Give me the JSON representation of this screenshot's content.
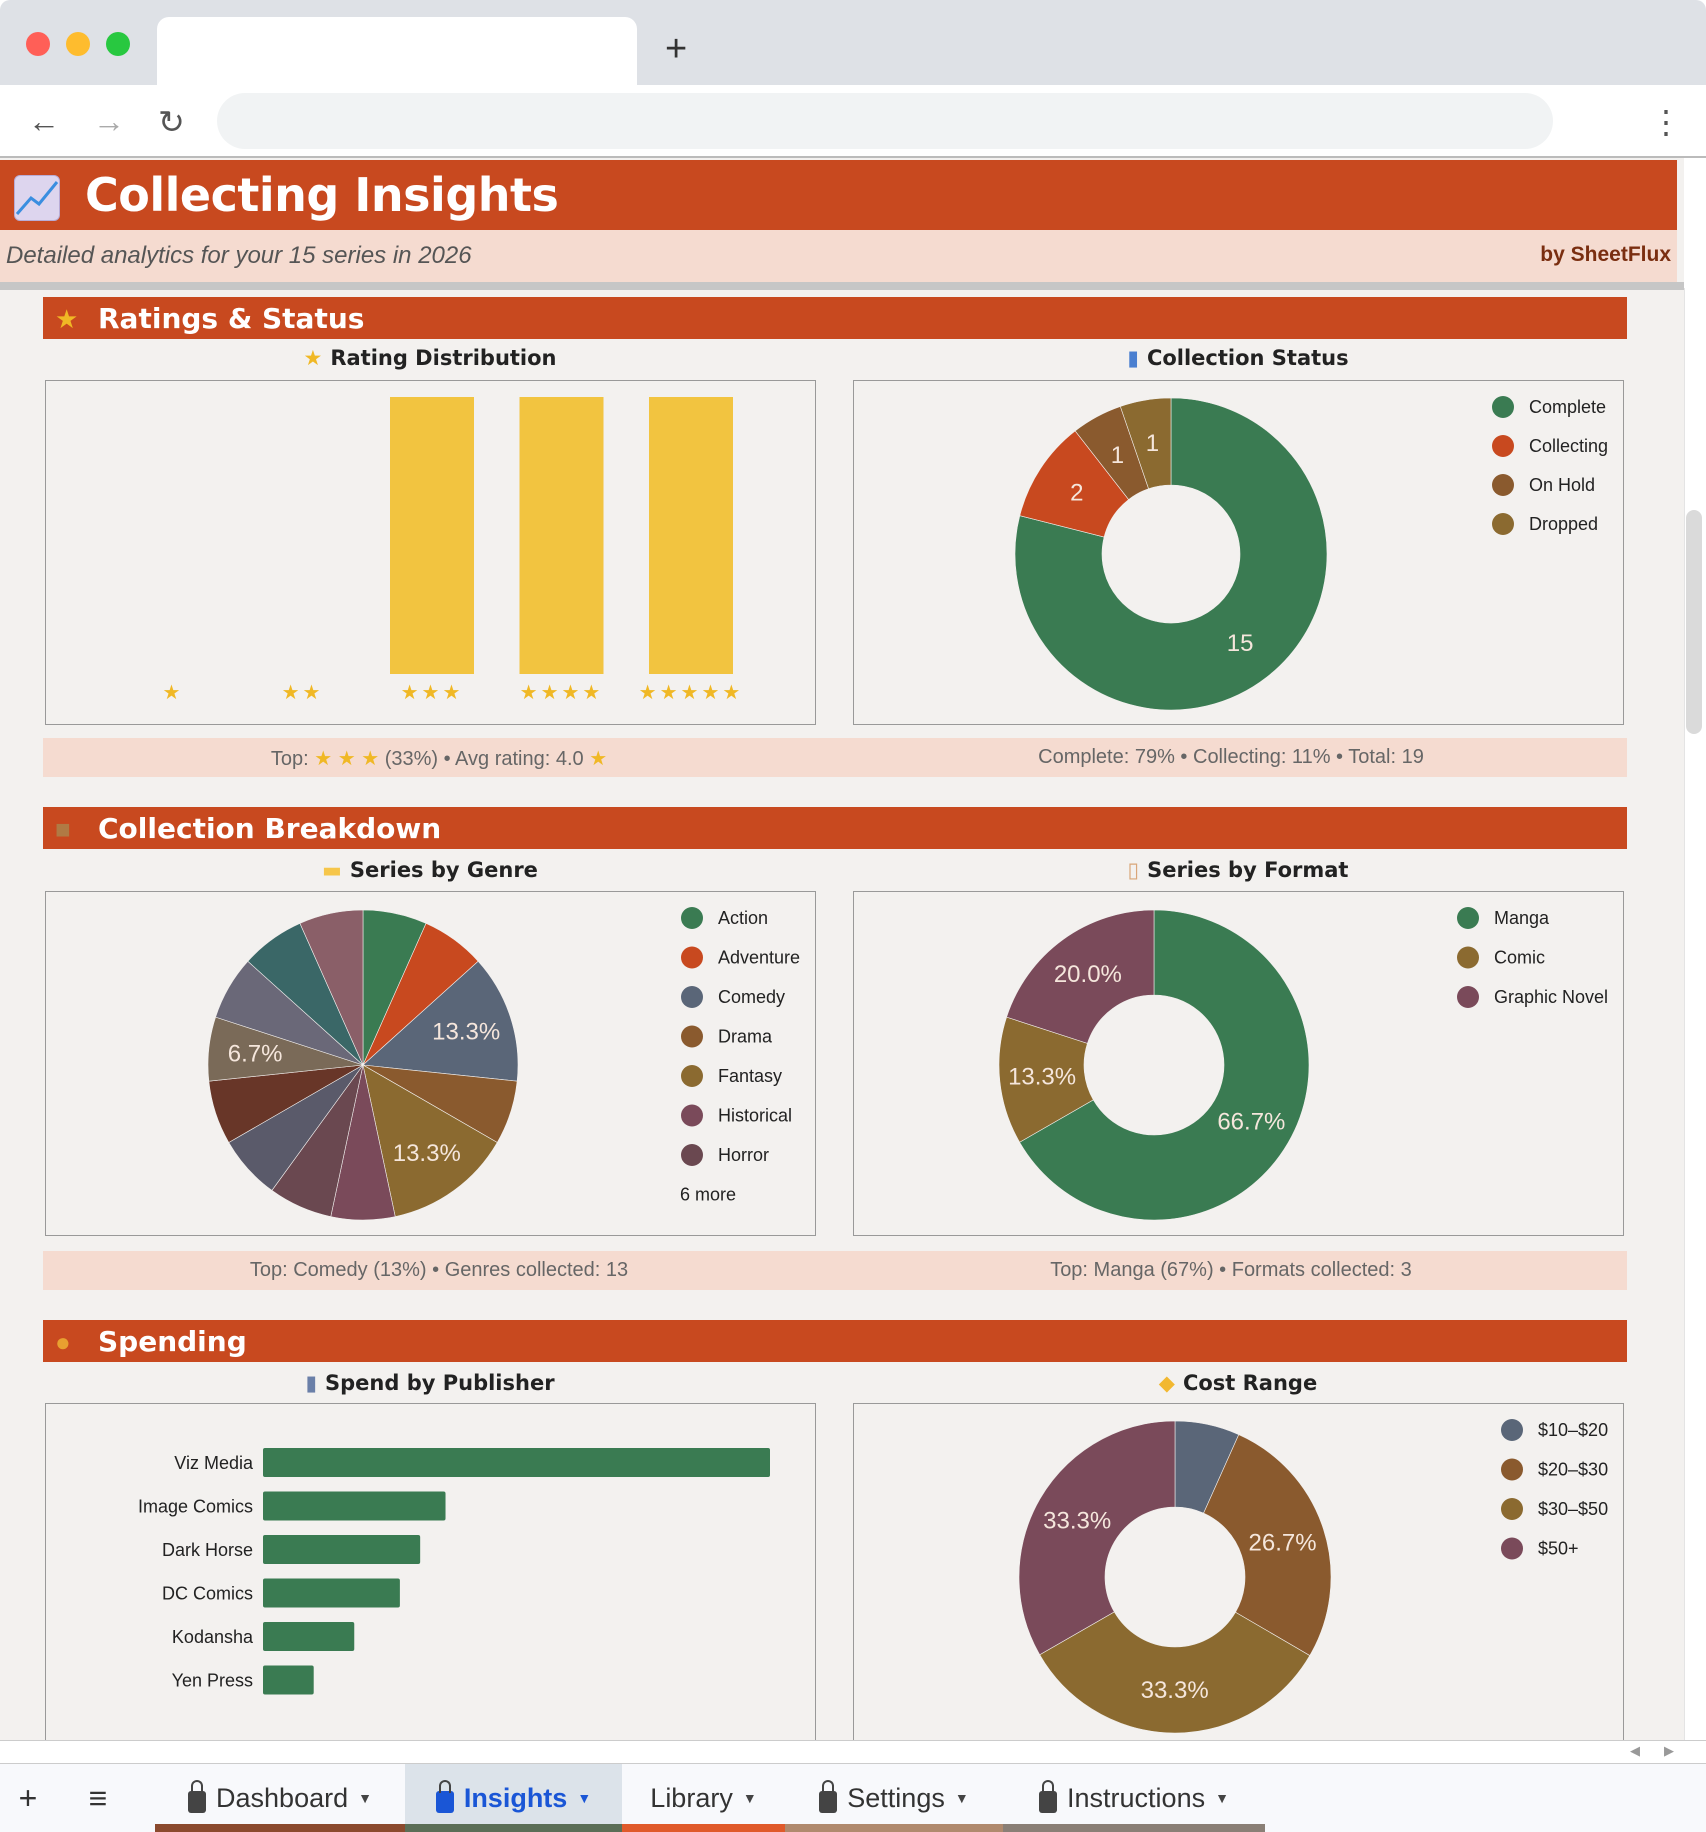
{
  "header": {
    "title": "Collecting Insights",
    "subtitle": "Detailed analytics for your 15 series in 2026",
    "brand": "by SheetFlux"
  },
  "sections": [
    {
      "title": "Ratings & Status",
      "icon": "star-icon"
    },
    {
      "title": "Collection Breakdown",
      "icon": "package-icon"
    },
    {
      "title": "Spending",
      "icon": "money-bag-icon"
    }
  ],
  "charts": {
    "rating": {
      "title": "Rating Distribution",
      "icon": "star-icon",
      "footer_prefix": "Top:",
      "footer_stars": "★ ★ ★",
      "footer_mid": "(33%) • Avg rating: 4.0",
      "footer_star": "★"
    },
    "status": {
      "title": "Collection Status",
      "icon": "bar-chart-icon",
      "footer": "Complete: 79% • Collecting: 11% • Total: 19"
    },
    "genre": {
      "title": "Series by Genre",
      "icon": "folder-icon",
      "more": "6 more",
      "footer": "Top: Comedy (13%) • Genres collected: 13"
    },
    "format": {
      "title": "Series by Format",
      "icon": "clipboard-icon",
      "footer": "Top: Manga (67%) • Formats collected: 3"
    },
    "publisher": {
      "title": "Spend by Publisher",
      "icon": "office-building-icon"
    },
    "cost": {
      "title": "Cost Range",
      "icon": "price-tag-icon"
    }
  },
  "chart_data": [
    {
      "type": "bar",
      "id": "rating",
      "categories": [
        "★",
        "★★",
        "★★★",
        "★★★★",
        "★★★★★"
      ],
      "values": [
        0,
        0,
        5,
        5,
        5
      ],
      "color": "#f2c440"
    },
    {
      "type": "pie",
      "id": "status",
      "donut": true,
      "categories": [
        "Complete",
        "Collecting",
        "On Hold",
        "Dropped"
      ],
      "values": [
        15,
        2,
        1,
        1
      ],
      "labels": [
        "15",
        "2",
        "1",
        "1"
      ],
      "colors": [
        "#3a7b52",
        "#c8491f",
        "#8a5a2e",
        "#8b6a30"
      ],
      "legend": "right"
    },
    {
      "type": "pie",
      "id": "genre",
      "donut": false,
      "categories": [
        "Action",
        "Adventure",
        "Comedy",
        "Drama",
        "Fantasy",
        "Historical",
        "Horror"
      ],
      "values": [
        1,
        1,
        2,
        1,
        2,
        1,
        1,
        1,
        1,
        1,
        1,
        1,
        1
      ],
      "labels": [
        null,
        null,
        "13.3%",
        null,
        "13.3%",
        null,
        null,
        null,
        null,
        "6.7%",
        null,
        null,
        null
      ],
      "colors": [
        "#3a7b52",
        "#c8491f",
        "#5a6678",
        "#8a5a2e",
        "#8b6a30",
        "#7a4a5a",
        "#6a4850",
        "#5a5a6a",
        "#683628",
        "#7a6a58",
        "#6a6878",
        "#3a6767",
        "#8a5f68"
      ],
      "legend": "right"
    },
    {
      "type": "pie",
      "id": "format",
      "donut": true,
      "categories": [
        "Manga",
        "Comic",
        "Graphic Novel"
      ],
      "values": [
        66.7,
        13.3,
        20.0
      ],
      "labels": [
        "66.7%",
        "13.3%",
        "20.0%"
      ],
      "colors": [
        "#3a7b52",
        "#8b6a30",
        "#7a4a5a"
      ],
      "legend": "right"
    },
    {
      "type": "bar",
      "id": "publisher",
      "orientation": "horizontal",
      "categories": [
        "Viz Media",
        "Image Comics",
        "Dark Horse",
        "DC Comics",
        "Kodansha",
        "Yen Press"
      ],
      "values": [
        100,
        36,
        31,
        27,
        18,
        10
      ],
      "color": "#3a7b52"
    },
    {
      "type": "pie",
      "id": "cost",
      "donut": true,
      "categories": [
        "$10–$20",
        "$20–$30",
        "$30–$50",
        "$50+"
      ],
      "values": [
        6.7,
        26.7,
        33.3,
        33.3
      ],
      "labels": [
        null,
        "26.7%",
        "33.3%",
        "33.3%"
      ],
      "colors": [
        "#5a6678",
        "#8a5a2e",
        "#8b6a30",
        "#7a4a5a"
      ],
      "legend": "right"
    }
  ],
  "tabs": [
    {
      "label": "Dashboard",
      "locked": true,
      "color": "#8b4a2e"
    },
    {
      "label": "Insights",
      "locked": true,
      "active": true,
      "color": "#5b6e57"
    },
    {
      "label": "Library",
      "locked": false,
      "color": "#e05a2b"
    },
    {
      "label": "Settings",
      "locked": true,
      "color": "#b08a6e"
    },
    {
      "label": "Instructions",
      "locked": true,
      "color": "#8a7f76"
    }
  ],
  "toolbar": {
    "add_sheet": "+",
    "all_sheets": "≡",
    "new_tab": "+",
    "back": "←",
    "forward": "→",
    "reload": "↻",
    "menu": "⋮"
  }
}
